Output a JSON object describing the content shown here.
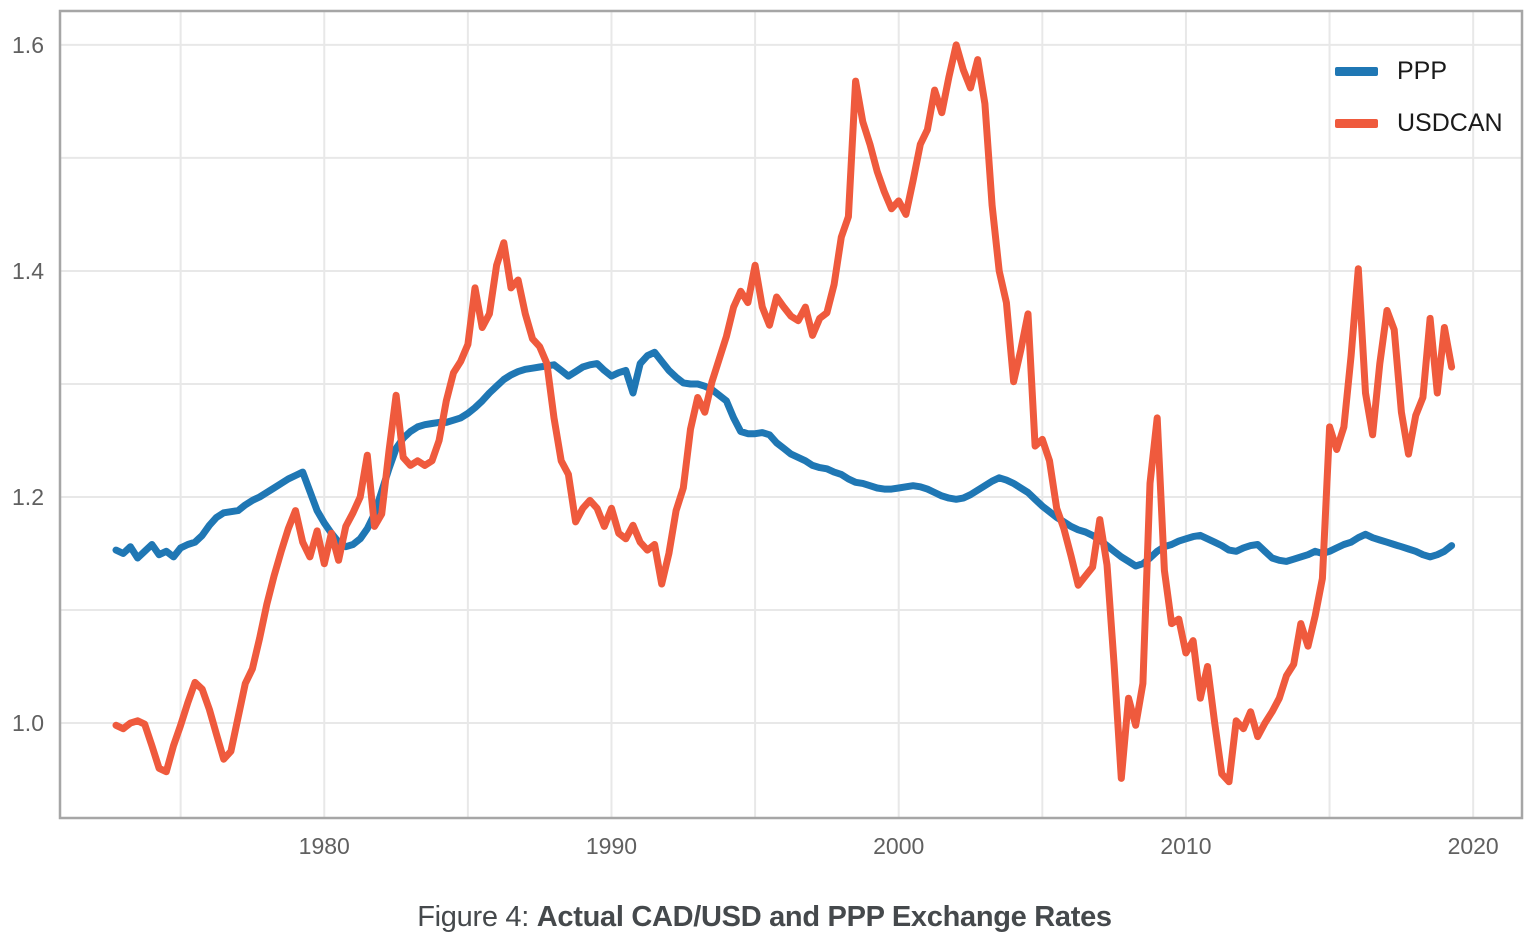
{
  "figure": {
    "caption_prefix": "Figure 4: ",
    "caption_title": "Actual CAD/USD and PPP Exchange Rates"
  },
  "chart_data": {
    "type": "line",
    "title": "Figure 4: Actual CAD/USD and PPP Exchange Rates",
    "xlabel": "",
    "ylabel": "",
    "x_unit": "year",
    "x_start": 1972.75,
    "x_step": 0.25,
    "n_points": 187,
    "xlim": [
      1970.8,
      2021.7
    ],
    "ylim": [
      0.916,
      1.63
    ],
    "grid_on": true,
    "x_gridlines": [
      1975,
      1980,
      1985,
      1990,
      1995,
      2000,
      2005,
      2010,
      2015,
      2020
    ],
    "y_gridlines": [
      1.0,
      1.1,
      1.2,
      1.3,
      1.4,
      1.5,
      1.6
    ],
    "x_tick_years": [
      1980,
      1990,
      2000,
      2010,
      2020
    ],
    "x_tick_labels": [
      "1980",
      "1990",
      "2000",
      "2010",
      "2020"
    ],
    "y_tick_values": [
      1.0,
      1.2,
      1.4,
      1.6
    ],
    "y_tick_labels": [
      "1.0",
      "1.2",
      "1.4",
      "1.6"
    ],
    "colors": {
      "grid": "#e8e8e8",
      "frame": "#a6a6a6",
      "tick_text": "#606060",
      "legend_text": "#1a1a1a",
      "caption_text": "#45494c",
      "ppp_blue": "#1f77b4",
      "usdcan_red": "#ef5a3d"
    },
    "legend": {
      "position": "top-right",
      "entries": [
        "PPP",
        "USDCAN"
      ]
    },
    "series": [
      {
        "name": "PPP",
        "color": "#1f77b4",
        "values": [
          1.153,
          1.15,
          1.156,
          1.146,
          1.152,
          1.158,
          1.149,
          1.152,
          1.147,
          1.155,
          1.158,
          1.16,
          1.166,
          1.175,
          1.182,
          1.186,
          1.187,
          1.188,
          1.193,
          1.197,
          1.2,
          1.204,
          1.208,
          1.212,
          1.216,
          1.219,
          1.222,
          1.205,
          1.188,
          1.177,
          1.168,
          1.16,
          1.156,
          1.158,
          1.163,
          1.172,
          1.185,
          1.205,
          1.225,
          1.243,
          1.252,
          1.258,
          1.262,
          1.264,
          1.265,
          1.266,
          1.266,
          1.268,
          1.27,
          1.274,
          1.279,
          1.285,
          1.292,
          1.298,
          1.304,
          1.308,
          1.311,
          1.313,
          1.314,
          1.315,
          1.316,
          1.317,
          1.312,
          1.307,
          1.311,
          1.315,
          1.317,
          1.318,
          1.312,
          1.307,
          1.31,
          1.312,
          1.292,
          1.318,
          1.325,
          1.328,
          1.32,
          1.312,
          1.306,
          1.301,
          1.3,
          1.3,
          1.298,
          1.295,
          1.29,
          1.285,
          1.27,
          1.258,
          1.256,
          1.256,
          1.257,
          1.255,
          1.248,
          1.243,
          1.238,
          1.235,
          1.232,
          1.228,
          1.226,
          1.225,
          1.222,
          1.22,
          1.216,
          1.213,
          1.212,
          1.21,
          1.208,
          1.207,
          1.207,
          1.208,
          1.209,
          1.21,
          1.209,
          1.207,
          1.204,
          1.201,
          1.199,
          1.198,
          1.199,
          1.202,
          1.206,
          1.21,
          1.214,
          1.217,
          1.215,
          1.212,
          1.208,
          1.204,
          1.198,
          1.192,
          1.187,
          1.182,
          1.178,
          1.174,
          1.171,
          1.169,
          1.166,
          1.162,
          1.157,
          1.152,
          1.147,
          1.143,
          1.139,
          1.141,
          1.146,
          1.152,
          1.156,
          1.158,
          1.161,
          1.163,
          1.165,
          1.166,
          1.163,
          1.16,
          1.157,
          1.153,
          1.152,
          1.155,
          1.157,
          1.158,
          1.152,
          1.146,
          1.144,
          1.143,
          1.145,
          1.147,
          1.149,
          1.152,
          1.15,
          1.152,
          1.155,
          1.158,
          1.16,
          1.164,
          1.167,
          1.164,
          1.162,
          1.16,
          1.158,
          1.156,
          1.154,
          1.152,
          1.149,
          1.147,
          1.149,
          1.152,
          1.157
        ]
      },
      {
        "name": "USDCAN",
        "color": "#ef5a3d",
        "values": [
          0.998,
          0.995,
          1.0,
          1.002,
          0.999,
          0.98,
          0.96,
          0.957,
          0.98,
          0.998,
          1.018,
          1.036,
          1.03,
          1.012,
          0.99,
          0.968,
          0.975,
          1.005,
          1.035,
          1.048,
          1.075,
          1.105,
          1.13,
          1.152,
          1.172,
          1.188,
          1.16,
          1.147,
          1.17,
          1.141,
          1.168,
          1.144,
          1.174,
          1.186,
          1.2,
          1.237,
          1.174,
          1.185,
          1.24,
          1.29,
          1.235,
          1.228,
          1.232,
          1.228,
          1.232,
          1.25,
          1.285,
          1.31,
          1.32,
          1.335,
          1.385,
          1.35,
          1.362,
          1.405,
          1.425,
          1.385,
          1.392,
          1.362,
          1.34,
          1.333,
          1.318,
          1.27,
          1.232,
          1.22,
          1.178,
          1.19,
          1.197,
          1.19,
          1.174,
          1.19,
          1.168,
          1.163,
          1.175,
          1.16,
          1.153,
          1.158,
          1.123,
          1.15,
          1.188,
          1.208,
          1.26,
          1.288,
          1.275,
          1.302,
          1.322,
          1.342,
          1.368,
          1.382,
          1.372,
          1.405,
          1.368,
          1.352,
          1.377,
          1.368,
          1.36,
          1.356,
          1.368,
          1.343,
          1.358,
          1.363,
          1.388,
          1.43,
          1.448,
          1.568,
          1.532,
          1.512,
          1.488,
          1.47,
          1.455,
          1.462,
          1.45,
          1.48,
          1.512,
          1.525,
          1.56,
          1.54,
          1.572,
          1.6,
          1.578,
          1.562,
          1.587,
          1.548,
          1.458,
          1.4,
          1.372,
          1.302,
          1.33,
          1.362,
          1.245,
          1.251,
          1.232,
          1.19,
          1.172,
          1.148,
          1.122,
          1.13,
          1.138,
          1.18,
          1.14,
          1.052,
          0.951,
          1.022,
          0.998,
          1.035,
          1.212,
          1.27,
          1.135,
          1.088,
          1.092,
          1.062,
          1.073,
          1.022,
          1.05,
          1.0,
          0.955,
          0.948,
          1.002,
          0.995,
          1.01,
          0.988,
          1.0,
          1.01,
          1.022,
          1.042,
          1.052,
          1.088,
          1.068,
          1.095,
          1.128,
          1.262,
          1.242,
          1.262,
          1.325,
          1.402,
          1.292,
          1.255,
          1.318,
          1.365,
          1.348,
          1.275,
          1.238,
          1.272,
          1.288,
          1.358,
          1.292,
          1.35,
          1.315
        ]
      }
    ]
  }
}
